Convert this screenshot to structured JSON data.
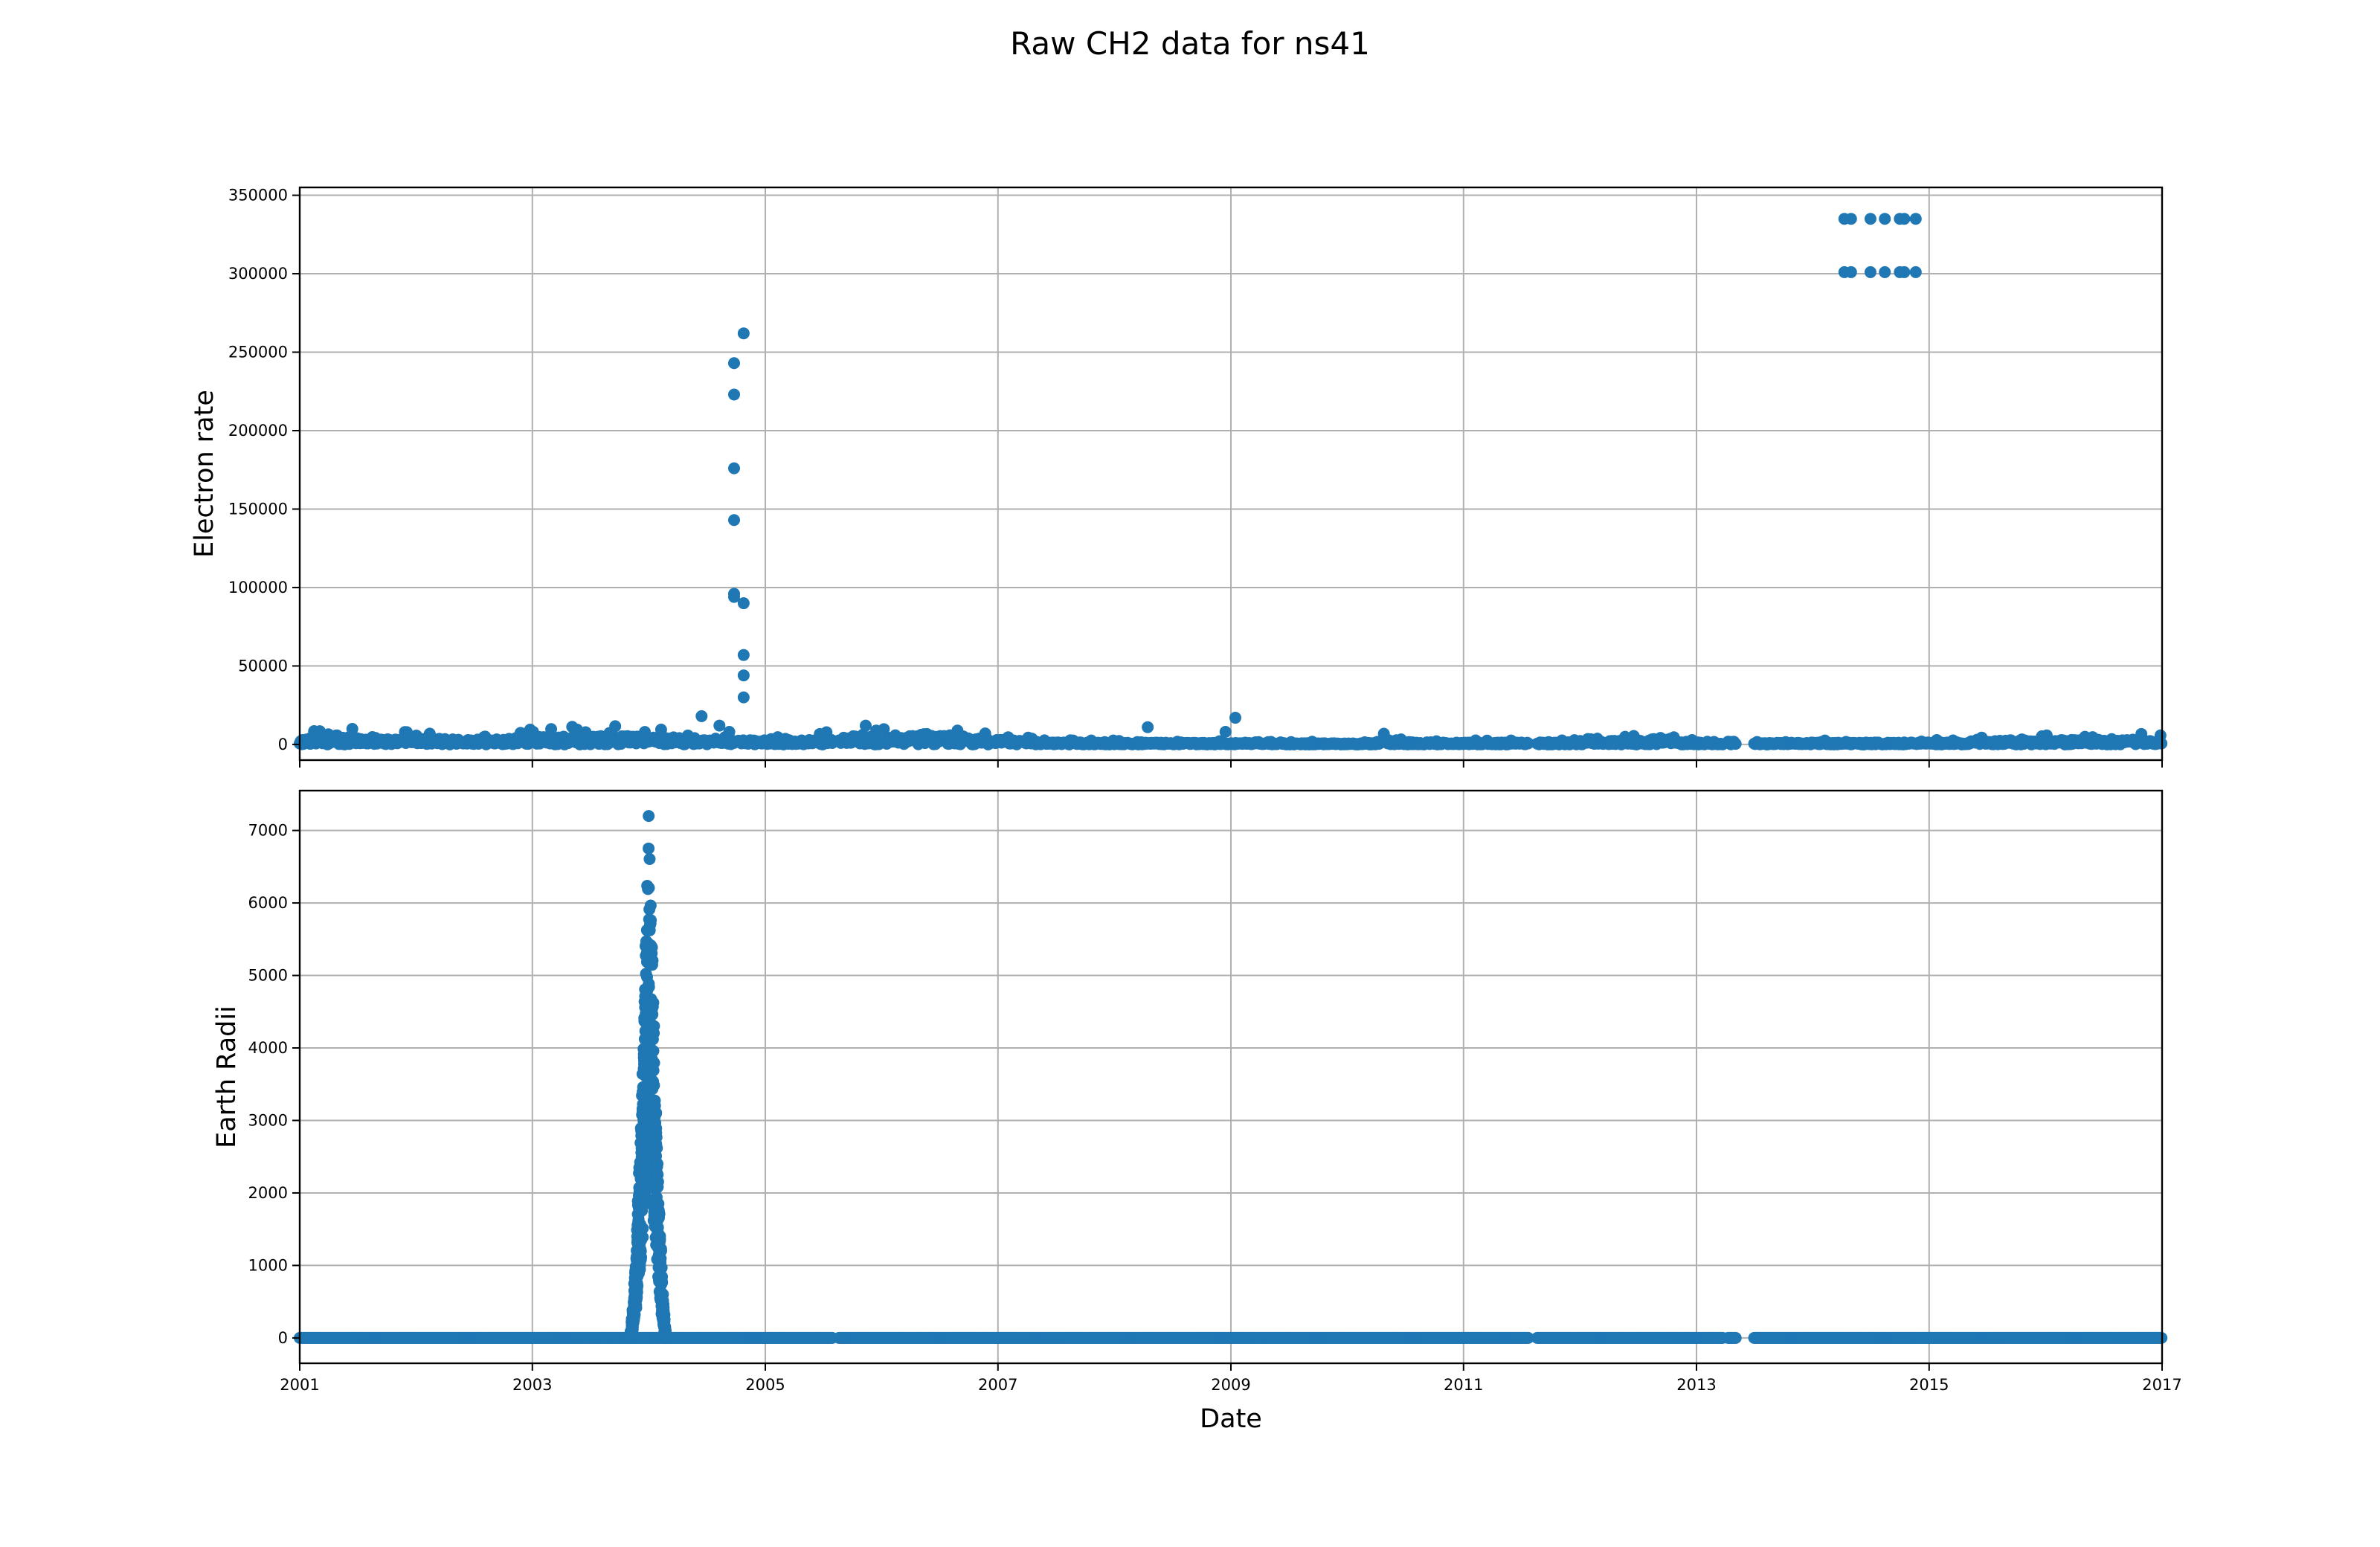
{
  "figure": {
    "title": "Raw CH2 data for ns41"
  },
  "colors": {
    "marker": "#1f77b4",
    "grid": "#b0b0b0"
  },
  "chart_data": [
    {
      "type": "scatter",
      "id": "top",
      "ylabel": "Electron rate",
      "xlabel": "",
      "xlim": [
        "2001-01-01",
        "2017-01-01"
      ],
      "ylim": [
        -10000,
        355000
      ],
      "xticks": [
        "2001",
        "2003",
        "2005",
        "2007",
        "2009",
        "2011",
        "2013",
        "2015",
        "2017"
      ],
      "yticks": [
        0,
        50000,
        100000,
        150000,
        200000,
        250000,
        300000,
        350000
      ],
      "show_xtick_labels": false,
      "grid": true,
      "baseline_segments": [
        [
          "2001-01-01",
          "2005-08-01"
        ],
        [
          "2005-08-20",
          "2011-07-25"
        ],
        [
          "2011-08-20",
          "2013-03-25"
        ],
        [
          "2013-04-10",
          "2013-05-05"
        ],
        [
          "2013-07-01",
          "2017-01-01"
        ]
      ],
      "baseline_envelope": [
        [
          "2001-01-01",
          6000
        ],
        [
          "2001-05-01",
          13000
        ],
        [
          "2001-08-01",
          7000
        ],
        [
          "2002-03-01",
          9000
        ],
        [
          "2002-08-01",
          5000
        ],
        [
          "2003-01-01",
          11000
        ],
        [
          "2003-06-01",
          12000
        ],
        [
          "2003-12-01",
          12000
        ],
        [
          "2004-06-01",
          6000
        ],
        [
          "2005-06-01",
          6000
        ],
        [
          "2005-12-01",
          15000
        ],
        [
          "2006-07-01",
          15000
        ],
        [
          "2007-01-01",
          7000
        ],
        [
          "2007-06-01",
          3000
        ],
        [
          "2010-03-01",
          1500
        ],
        [
          "2010-05-01",
          8000
        ],
        [
          "2010-08-01",
          2500
        ],
        [
          "2012-01-01",
          3000
        ],
        [
          "2012-09-01",
          8000
        ],
        [
          "2013-02-01",
          2000
        ],
        [
          "2015-03-01",
          3000
        ],
        [
          "2015-09-01",
          6000
        ],
        [
          "2017-01-01",
          7000
        ]
      ],
      "points": [
        [
          "2004-06-15",
          18000
        ],
        [
          "2004-08-10",
          12000
        ],
        [
          "2004-09-10",
          8000
        ],
        [
          "2004-09-25",
          243000
        ],
        [
          "2004-09-25",
          223000
        ],
        [
          "2004-09-25",
          176000
        ],
        [
          "2004-09-25",
          143000
        ],
        [
          "2004-09-25",
          96000
        ],
        [
          "2004-09-25",
          94000
        ],
        [
          "2004-10-25",
          262000
        ],
        [
          "2004-10-25",
          90000
        ],
        [
          "2004-10-25",
          57000
        ],
        [
          "2004-10-25",
          44000
        ],
        [
          "2004-10-25",
          30000
        ],
        [
          "2008-04-15",
          11000
        ],
        [
          "2008-12-15",
          8000
        ],
        [
          "2009-01-15",
          17000
        ],
        [
          "2014-04-10",
          335000
        ],
        [
          "2014-05-01",
          335000
        ],
        [
          "2014-07-01",
          335000
        ],
        [
          "2014-08-15",
          335000
        ],
        [
          "2014-10-01",
          335000
        ],
        [
          "2014-10-15",
          335000
        ],
        [
          "2014-11-20",
          335000
        ],
        [
          "2014-04-10",
          301000
        ],
        [
          "2014-05-01",
          301000
        ],
        [
          "2014-07-01",
          301000
        ],
        [
          "2014-08-15",
          301000
        ],
        [
          "2014-10-01",
          301000
        ],
        [
          "2014-10-15",
          301000
        ],
        [
          "2014-11-20",
          301000
        ]
      ]
    },
    {
      "type": "scatter",
      "id": "bottom",
      "ylabel": "Earth Radii",
      "xlabel": "Date",
      "xlim": [
        "2001-01-01",
        "2017-01-01"
      ],
      "ylim": [
        -350,
        7550
      ],
      "xticks": [
        "2001",
        "2003",
        "2005",
        "2007",
        "2009",
        "2011",
        "2013",
        "2015",
        "2017"
      ],
      "yticks": [
        0,
        1000,
        2000,
        3000,
        4000,
        5000,
        6000,
        7000
      ],
      "show_xtick_labels": true,
      "grid": true,
      "baseline_segments": [
        [
          "2001-01-01",
          "2005-08-01"
        ],
        [
          "2005-08-20",
          "2011-07-25"
        ],
        [
          "2011-08-20",
          "2013-03-25"
        ],
        [
          "2013-04-10",
          "2013-05-05"
        ],
        [
          "2013-07-01",
          "2017-01-01"
        ]
      ],
      "peak": {
        "start": "2003-11-01",
        "center": "2004-01-01",
        "end": "2004-02-25",
        "max": 7200
      }
    }
  ]
}
